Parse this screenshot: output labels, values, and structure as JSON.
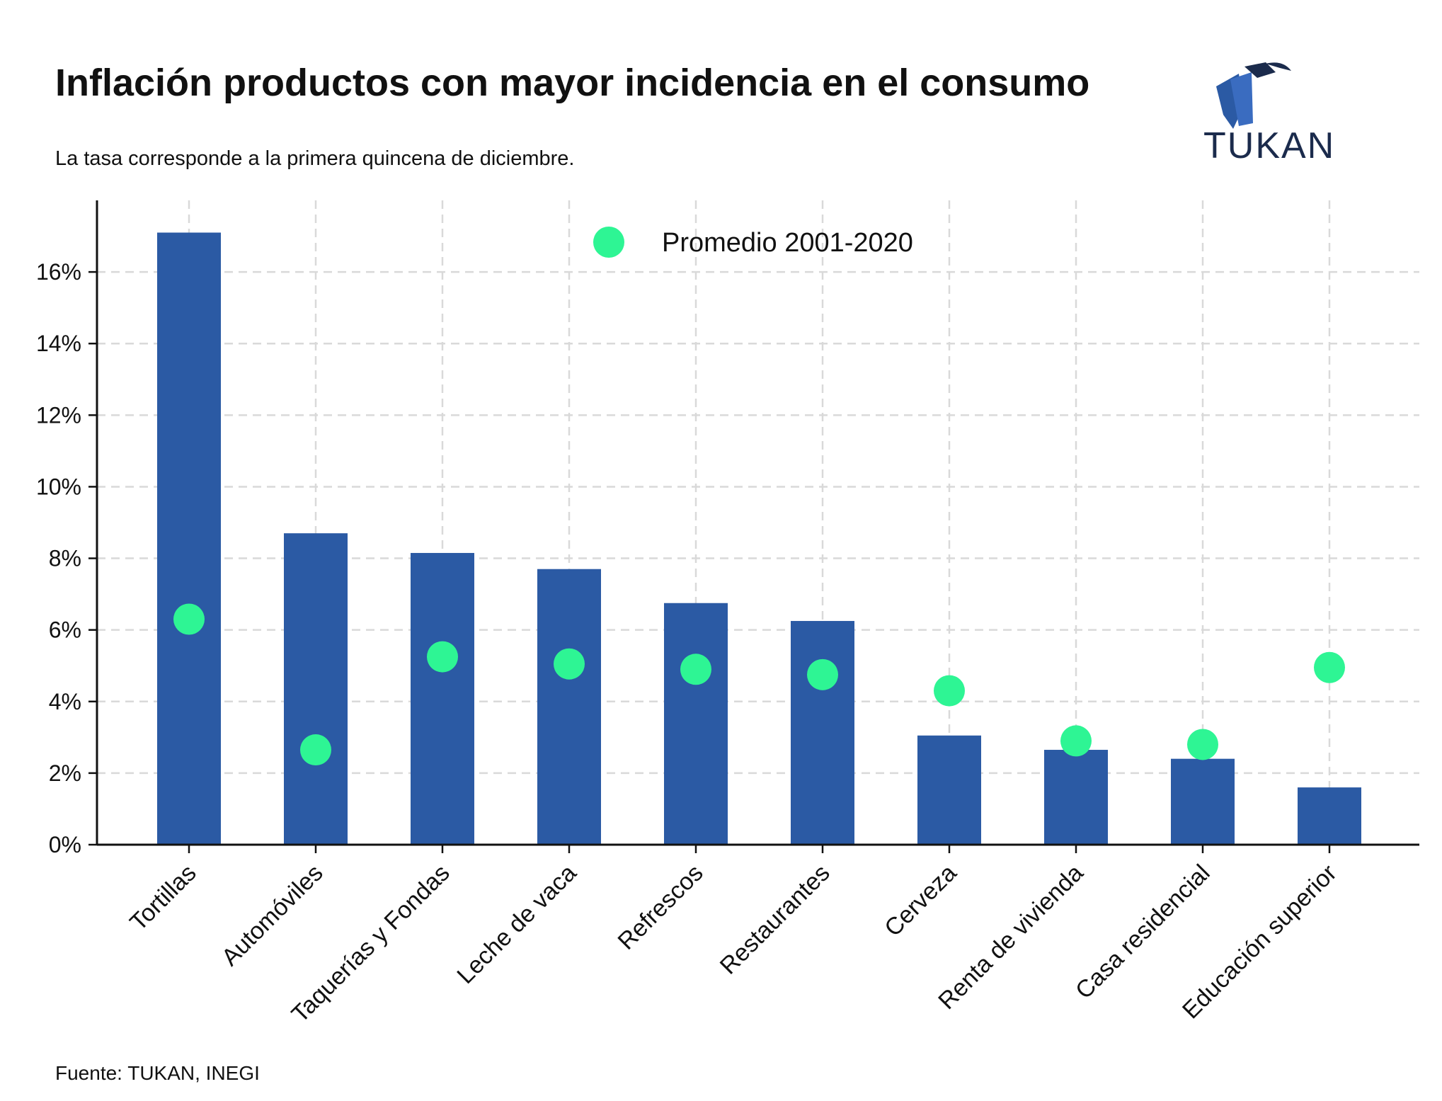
{
  "header": {
    "title": "Inflación productos con mayor incidencia en el consumo",
    "subtitle": "La tasa corresponde a la primera quincena de diciembre.",
    "logo_text": "TUKAN"
  },
  "footer": {
    "source": "Fuente: TUKAN, INEGI"
  },
  "colors": {
    "bar": "#2b5aa4",
    "dot": "#2ef594",
    "grid": "#d9d9d9",
    "logo": "#1b2b4c"
  },
  "chart_data": {
    "type": "bar",
    "categories": [
      "Tortillas",
      "Automóviles",
      "Taquerías y Fondas",
      "Leche de vaca",
      "Refrescos",
      "Restaurantes",
      "Cerveza",
      "Renta de vivienda",
      "Casa residencial",
      "Educación superior"
    ],
    "series": [
      {
        "type": "bar",
        "values": [
          17.1,
          8.7,
          8.15,
          7.7,
          6.75,
          6.25,
          3.05,
          2.65,
          2.4,
          1.6
        ]
      },
      {
        "type": "scatter",
        "name": "Promedio 2001-2020",
        "values": [
          6.3,
          2.65,
          5.25,
          5.05,
          4.9,
          4.75,
          4.3,
          2.9,
          2.8,
          4.95
        ]
      }
    ],
    "ylim": [
      0,
      18
    ],
    "yticks": [
      0,
      2,
      4,
      6,
      8,
      10,
      12,
      14,
      16
    ],
    "ytick_labels": [
      "0%",
      "2%",
      "4%",
      "6%",
      "8%",
      "10%",
      "12%",
      "14%",
      "16%"
    ],
    "grid": true,
    "legend_position": "top-center"
  }
}
